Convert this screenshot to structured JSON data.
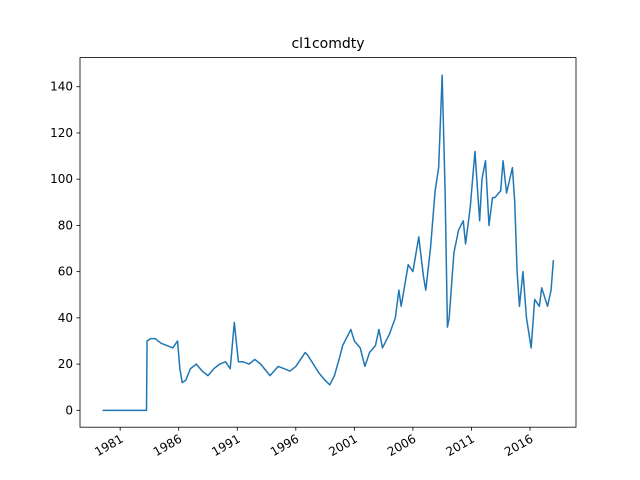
{
  "chart_data": {
    "type": "line",
    "title": "cl1comdty",
    "color": "#1f77b4",
    "x": [
      1979.5,
      1983.25,
      1983.3,
      1983.6,
      1984,
      1984.5,
      1985,
      1985.5,
      1985.9,
      1986.1,
      1986.3,
      1986.6,
      1987,
      1987.5,
      1988,
      1988.5,
      1989,
      1989.5,
      1990,
      1990.4,
      1990.75,
      1990.85,
      1991.1,
      1991.5,
      1992,
      1992.5,
      1993,
      1993.8,
      1994.5,
      1995,
      1995.5,
      1996,
      1996.8,
      1997,
      1997.5,
      1998,
      1998.5,
      1998.9,
      1999.3,
      1999.8,
      2000,
      2000.7,
      2001,
      2001.5,
      2001.9,
      2002.3,
      2002.8,
      2003.1,
      2003.4,
      2004,
      2004.5,
      2004.8,
      2005,
      2005.6,
      2006,
      2006.5,
      2006.9,
      2007.1,
      2007.5,
      2007.9,
      2008.2,
      2008.5,
      2008.75,
      2008.95,
      2009.1,
      2009.5,
      2009.9,
      2010.3,
      2010.5,
      2010.9,
      2011.3,
      2011.7,
      2011.9,
      2012.2,
      2012.5,
      2012.8,
      2013,
      2013.5,
      2013.7,
      2014,
      2014.5,
      2014.7,
      2014.9,
      2015.1,
      2015.4,
      2015.7,
      2016.1,
      2016.4,
      2016.8,
      2017,
      2017.5,
      2017.8,
      2018.0
    ],
    "values": [
      0,
      0,
      30,
      31,
      31,
      29,
      28,
      27,
      30,
      18,
      12,
      13,
      18,
      20,
      17,
      15,
      18,
      20,
      21,
      18,
      38,
      33,
      21,
      21,
      20,
      22,
      20,
      15,
      19,
      18,
      17,
      19,
      25,
      24,
      20,
      16,
      13,
      11,
      15,
      24,
      28,
      35,
      30,
      27,
      19,
      25,
      28,
      35,
      27,
      33,
      40,
      52,
      45,
      63,
      60,
      75,
      58,
      52,
      70,
      95,
      105,
      145,
      95,
      36,
      40,
      68,
      78,
      82,
      72,
      88,
      112,
      82,
      100,
      108,
      80,
      92,
      92,
      95,
      108,
      94,
      105,
      90,
      60,
      45,
      60,
      40,
      27,
      48,
      45,
      53,
      45,
      52,
      65
    ],
    "xlim": [
      1977.57,
      2019.93
    ],
    "xticks": [
      1981,
      1986,
      1991,
      1996,
      2001,
      2006,
      2011,
      2016
    ],
    "ylim": [
      -7.3,
      152.6
    ],
    "yticks": [
      0,
      20,
      40,
      60,
      80,
      100,
      120,
      140
    ],
    "grid": false
  }
}
